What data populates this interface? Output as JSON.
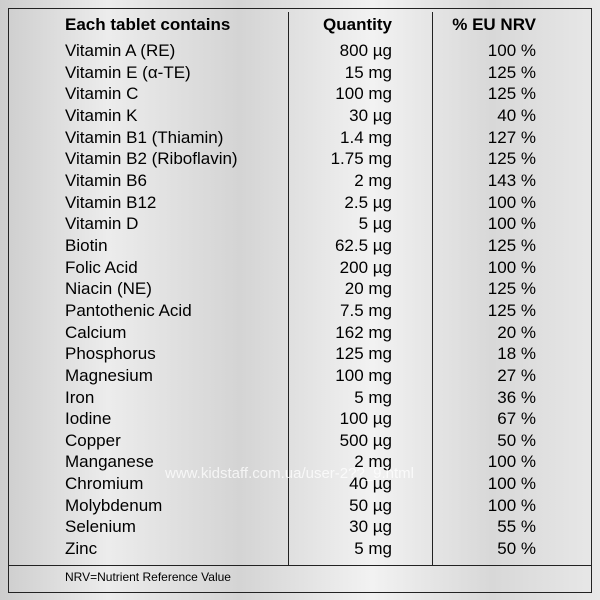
{
  "table": {
    "headers": {
      "name": "Each tablet contains",
      "quantity": "Quantity",
      "nrv": "% EU NRV"
    },
    "rows": [
      {
        "name": "Vitamin A (RE)",
        "quantity": "800 µg",
        "nrv": "100 %"
      },
      {
        "name": "Vitamin E (α-TE)",
        "quantity": "15 mg",
        "nrv": "125 %"
      },
      {
        "name": "Vitamin C",
        "quantity": "100 mg",
        "nrv": "125 %"
      },
      {
        "name": "Vitamin K",
        "quantity": "30 µg",
        "nrv": "40 %"
      },
      {
        "name": "Vitamin B1 (Thiamin)",
        "quantity": "1.4 mg",
        "nrv": "127 %"
      },
      {
        "name": "Vitamin B2 (Riboflavin)",
        "quantity": "1.75 mg",
        "nrv": "125 %"
      },
      {
        "name": "Vitamin B6",
        "quantity": "2 mg",
        "nrv": "143 %"
      },
      {
        "name": "Vitamin B12",
        "quantity": "2.5 µg",
        "nrv": "100 %"
      },
      {
        "name": "Vitamin D",
        "quantity": "5 µg",
        "nrv": "100 %"
      },
      {
        "name": "Biotin",
        "quantity": "62.5 µg",
        "nrv": "125 %"
      },
      {
        "name": "Folic Acid",
        "quantity": "200 µg",
        "nrv": "100 %"
      },
      {
        "name": "Niacin (NE)",
        "quantity": "20 mg",
        "nrv": "125 %"
      },
      {
        "name": "Pantothenic Acid",
        "quantity": "7.5 mg",
        "nrv": "125 %"
      },
      {
        "name": "Calcium",
        "quantity": "162 mg",
        "nrv": "20 %"
      },
      {
        "name": "Phosphorus",
        "quantity": "125 mg",
        "nrv": "18 %"
      },
      {
        "name": "Magnesium",
        "quantity": "100 mg",
        "nrv": "27 %"
      },
      {
        "name": "Iron",
        "quantity": "5 mg",
        "nrv": "36 %"
      },
      {
        "name": "Iodine",
        "quantity": "100 µg",
        "nrv": "67 %"
      },
      {
        "name": "Copper",
        "quantity": "500 µg",
        "nrv": "50 %"
      },
      {
        "name": "Manganese",
        "quantity": "2 mg",
        "nrv": "100 %"
      },
      {
        "name": "Chromium",
        "quantity": "40 µg",
        "nrv": "100 %"
      },
      {
        "name": "Molybdenum",
        "quantity": "50 µg",
        "nrv": "100 %"
      },
      {
        "name": "Selenium",
        "quantity": "30 µg",
        "nrv": "55 %"
      },
      {
        "name": "Zinc",
        "quantity": "5 mg",
        "nrv": "50 %"
      }
    ],
    "footnote": "NRV=Nutrient Reference Value"
  },
  "watermark": "www.kidstaff.com.ua/user-2??_9.html"
}
